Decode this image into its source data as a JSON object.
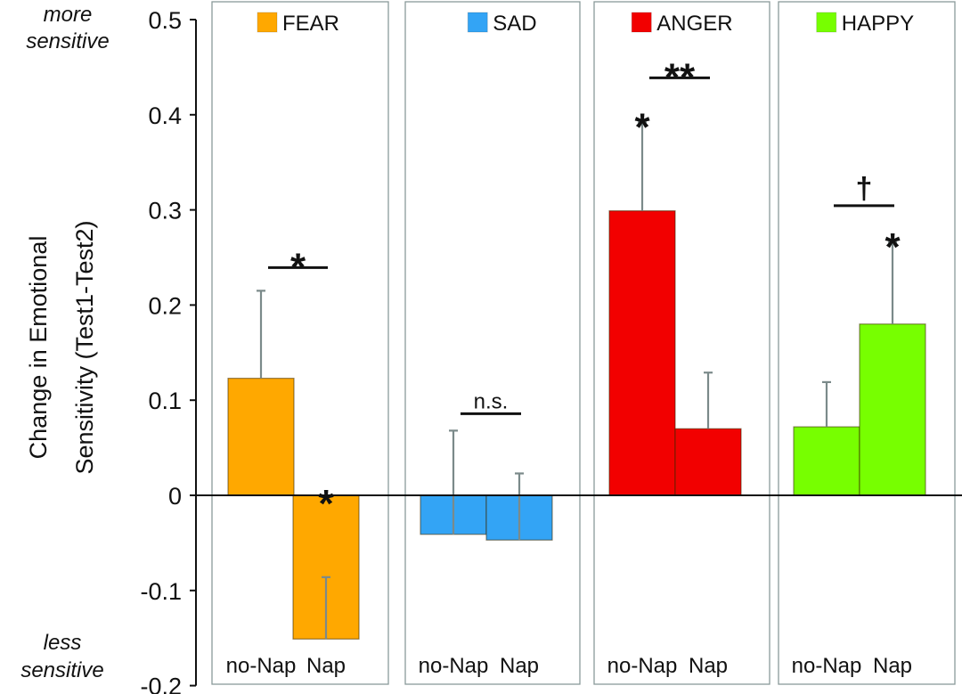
{
  "chart_data": {
    "type": "bar",
    "title": "",
    "xlabel": "",
    "ylabel_lines": [
      "Change in Emotional",
      "Sensitivity (Test1-Test2)"
    ],
    "ylim": [
      -0.2,
      0.5
    ],
    "yticks": [
      0.5,
      0.4,
      0.3,
      0.2,
      0.1,
      0,
      -0.1,
      -0.2
    ],
    "ytick_labels": [
      "0.5",
      "0.4",
      "0.3",
      "0.2",
      "0.1",
      "0",
      "-0.1",
      "-0.2"
    ],
    "grid": false,
    "annotations": {
      "top": [
        "more",
        "sensitive"
      ],
      "bottom": [
        "less",
        "sensitive"
      ]
    },
    "conditions": [
      "no-Nap",
      "Nap"
    ],
    "panels": [
      {
        "name": "FEAR",
        "color": "#FFA800",
        "bars": [
          {
            "condition": "no-Nap",
            "value": 0.123,
            "error_to": 0.215
          },
          {
            "condition": "Nap",
            "value": -0.151,
            "error_to": -0.086
          }
        ],
        "bar_marks": [
          "",
          "*"
        ],
        "comparison": {
          "label": "*"
        }
      },
      {
        "name": "SAD",
        "color": "#33A4F5",
        "bars": [
          {
            "condition": "no-Nap",
            "value": -0.041,
            "error_to": 0.068
          },
          {
            "condition": "Nap",
            "value": -0.047,
            "error_to": 0.023
          }
        ],
        "bar_marks": [
          "",
          ""
        ],
        "comparison": {
          "label": "n.s."
        }
      },
      {
        "name": "ANGER",
        "color": "#F20000",
        "bars": [
          {
            "condition": "no-Nap",
            "value": 0.299,
            "error_to": 0.392
          },
          {
            "condition": "Nap",
            "value": 0.07,
            "error_to": 0.129
          }
        ],
        "bar_marks": [
          "*",
          ""
        ],
        "comparison": {
          "label": "**"
        }
      },
      {
        "name": "HAPPY",
        "color": "#77FF00",
        "bars": [
          {
            "condition": "no-Nap",
            "value": 0.072,
            "error_to": 0.119
          },
          {
            "condition": "Nap",
            "value": 0.18,
            "error_to": 0.266
          }
        ],
        "bar_marks": [
          "",
          "*"
        ],
        "comparison": {
          "label": "†"
        }
      }
    ]
  }
}
